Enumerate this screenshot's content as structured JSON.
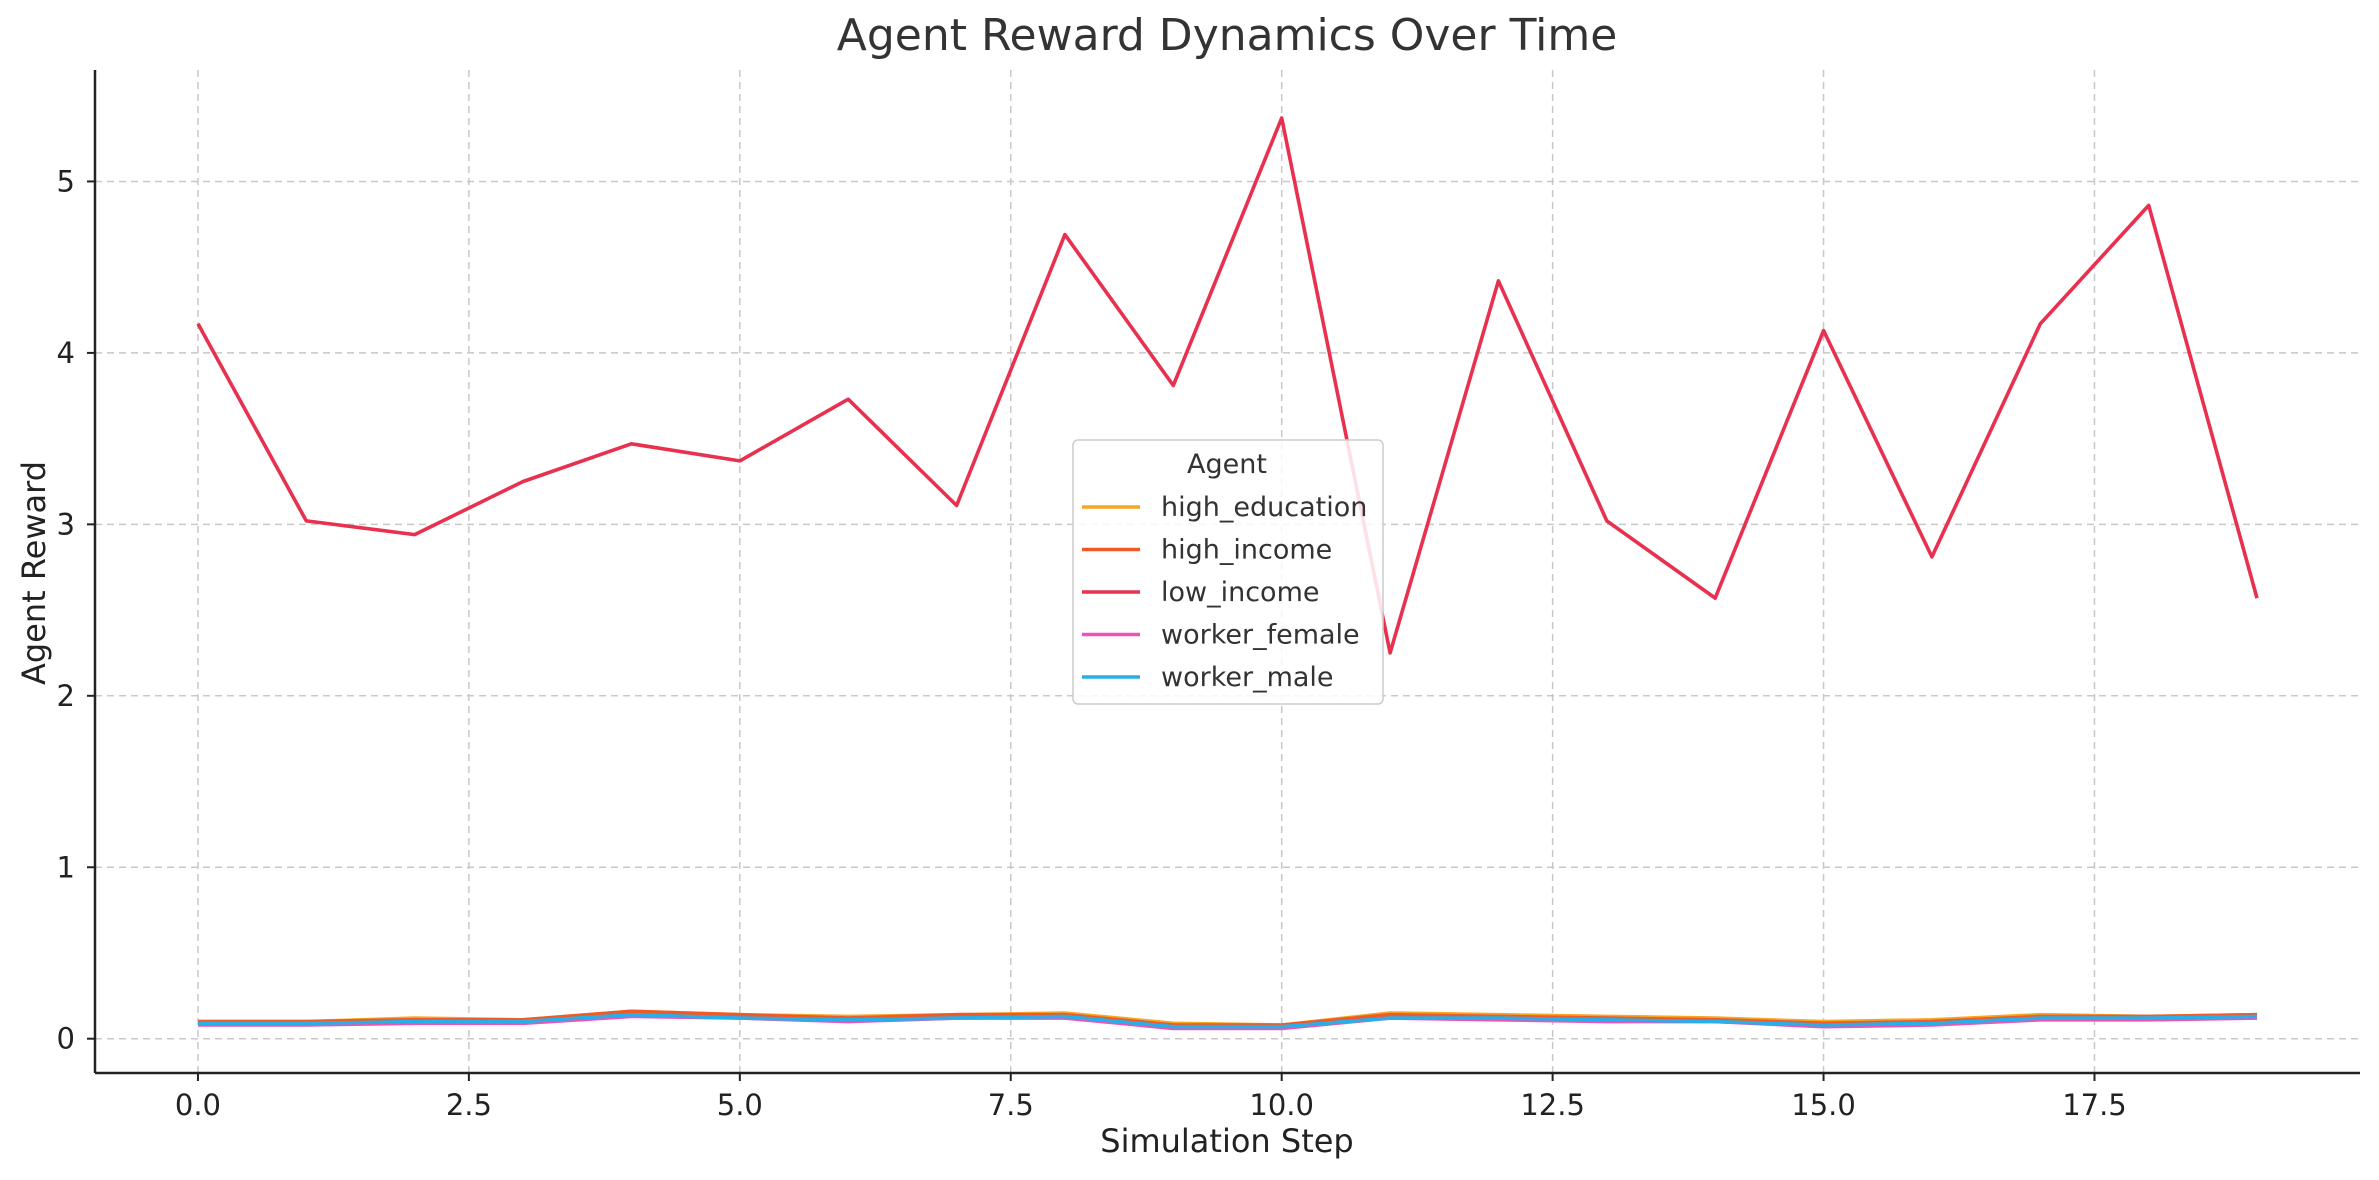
{
  "chart_data": {
    "type": "line",
    "title": "Agent Reward Dynamics Over Time",
    "xlabel": "Simulation Step",
    "ylabel": "Agent Reward",
    "xlim": [
      -0.95,
      19.95
    ],
    "ylim": [
      -0.2,
      5.65
    ],
    "x_ticks": [
      0.0,
      2.5,
      5.0,
      7.5,
      10.0,
      12.5,
      15.0,
      17.5
    ],
    "x_tick_labels": [
      "0.0",
      "2.5",
      "5.0",
      "7.5",
      "10.0",
      "12.5",
      "15.0",
      "17.5"
    ],
    "y_ticks": [
      0,
      1,
      2,
      3,
      4,
      5
    ],
    "y_tick_labels": [
      "0",
      "1",
      "2",
      "3",
      "4",
      "5"
    ],
    "grid": true,
    "legend": {
      "title": "Agent",
      "placement": "center"
    },
    "x": [
      0,
      1,
      2,
      3,
      4,
      5,
      6,
      7,
      8,
      9,
      10,
      11,
      12,
      13,
      14,
      15,
      16,
      17,
      18,
      19
    ],
    "series": [
      {
        "name": "high_education",
        "color": "#f5a623",
        "values": [
          0.1,
          0.1,
          0.12,
          0.11,
          0.16,
          0.14,
          0.13,
          0.14,
          0.15,
          0.09,
          0.08,
          0.15,
          0.14,
          0.13,
          0.12,
          0.1,
          0.11,
          0.14,
          0.13,
          0.14
        ]
      },
      {
        "name": "high_income",
        "color": "#f05a28",
        "values": [
          0.1,
          0.1,
          0.11,
          0.11,
          0.16,
          0.14,
          0.12,
          0.14,
          0.14,
          0.08,
          0.08,
          0.14,
          0.13,
          0.12,
          0.11,
          0.09,
          0.1,
          0.13,
          0.13,
          0.14
        ]
      },
      {
        "name": "low_income",
        "color": "#e8304f",
        "values": [
          4.17,
          3.02,
          2.94,
          3.25,
          3.47,
          3.37,
          3.73,
          3.11,
          4.69,
          3.81,
          5.37,
          2.25,
          4.42,
          3.02,
          2.57,
          4.13,
          2.81,
          4.17,
          4.86,
          2.57
        ]
      },
      {
        "name": "worker_female",
        "color": "#f052b8",
        "values": [
          0.08,
          0.08,
          0.09,
          0.09,
          0.13,
          0.12,
          0.1,
          0.12,
          0.12,
          0.06,
          0.06,
          0.12,
          0.11,
          0.1,
          0.1,
          0.07,
          0.08,
          0.11,
          0.11,
          0.12
        ]
      },
      {
        "name": "worker_male",
        "color": "#2aaee8",
        "values": [
          0.09,
          0.09,
          0.1,
          0.1,
          0.14,
          0.12,
          0.11,
          0.12,
          0.13,
          0.07,
          0.07,
          0.12,
          0.12,
          0.11,
          0.1,
          0.08,
          0.09,
          0.12,
          0.12,
          0.13
        ]
      }
    ]
  }
}
